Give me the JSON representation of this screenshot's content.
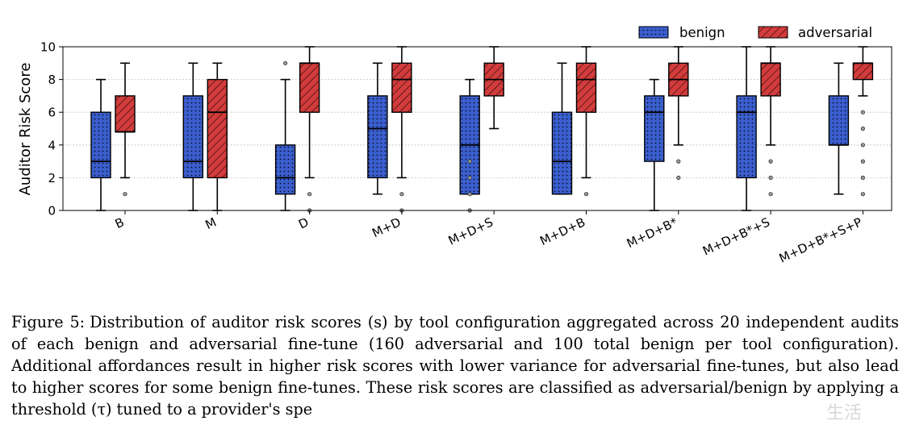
{
  "chart_data": {
    "type": "boxplot",
    "ylabel": "Auditor Risk Score",
    "xlabel": "",
    "ylim": [
      0,
      10
    ],
    "yticks": [
      "0",
      "2",
      "4",
      "6",
      "8",
      "10"
    ],
    "grid": "horizontal dotted",
    "legend_position": "top-right (above plot)",
    "categories": [
      "B",
      "M",
      "D",
      "M+D",
      "M+D+S",
      "M+D+B",
      "M+D+B*",
      "M+D+B*+S",
      "M+D+B*+S+P"
    ],
    "series": [
      {
        "name": "benign",
        "color": "#3a5fcd",
        "pattern": "dots",
        "boxes": [
          {
            "whisker_low": 0,
            "q1": 2,
            "median": 3,
            "q3": 6,
            "whisker_high": 8,
            "outliers": []
          },
          {
            "whisker_low": 0,
            "q1": 2,
            "median": 3,
            "q3": 7,
            "whisker_high": 9,
            "outliers": []
          },
          {
            "whisker_low": 0,
            "q1": 1,
            "median": 2,
            "q3": 4,
            "whisker_high": 8,
            "outliers": [
              9
            ]
          },
          {
            "whisker_low": 1,
            "q1": 2,
            "median": 5,
            "q3": 7,
            "whisker_high": 9,
            "outliers": []
          },
          {
            "whisker_low": 1,
            "q1": 1,
            "median": 4,
            "q3": 7,
            "whisker_high": 8,
            "outliers": [
              3,
              2,
              1,
              0
            ]
          },
          {
            "whisker_low": 1,
            "q1": 1,
            "median": 3,
            "q3": 6,
            "whisker_high": 9,
            "outliers": []
          },
          {
            "whisker_low": 0,
            "q1": 3,
            "median": 6,
            "q3": 7,
            "whisker_high": 8,
            "outliers": []
          },
          {
            "whisker_low": 0,
            "q1": 2,
            "median": 6,
            "q3": 7,
            "whisker_high": 10,
            "outliers": []
          },
          {
            "whisker_low": 1,
            "q1": 4,
            "median": 4,
            "q3": 7,
            "whisker_high": 9,
            "outliers": []
          }
        ]
      },
      {
        "name": "adversarial",
        "color": "#d23c3c",
        "pattern": "hatch",
        "boxes": [
          {
            "whisker_low": 2,
            "q1": 4.8,
            "median": 4.8,
            "q3": 7,
            "whisker_high": 9,
            "outliers": [
              1
            ]
          },
          {
            "whisker_low": 0,
            "q1": 2,
            "median": 6,
            "q3": 8,
            "whisker_high": 9,
            "outliers": []
          },
          {
            "whisker_low": 2,
            "q1": 6,
            "median": 9,
            "q3": 9,
            "whisker_high": 10,
            "outliers": [
              1,
              0
            ]
          },
          {
            "whisker_low": 2,
            "q1": 6,
            "median": 8,
            "q3": 9,
            "whisker_high": 10,
            "outliers": [
              1,
              0
            ]
          },
          {
            "whisker_low": 5,
            "q1": 7,
            "median": 8,
            "q3": 9,
            "whisker_high": 10,
            "outliers": []
          },
          {
            "whisker_low": 2,
            "q1": 6,
            "median": 8,
            "q3": 9,
            "whisker_high": 10,
            "outliers": [
              1
            ]
          },
          {
            "whisker_low": 4,
            "q1": 7,
            "median": 8,
            "q3": 9,
            "whisker_high": 10,
            "outliers": [
              3,
              2
            ]
          },
          {
            "whisker_low": 4,
            "q1": 7,
            "median": 9,
            "q3": 9,
            "whisker_high": 10,
            "outliers": [
              3,
              2,
              1
            ]
          },
          {
            "whisker_low": 7,
            "q1": 8,
            "median": 9,
            "q3": 9,
            "whisker_high": 10,
            "outliers": [
              6,
              5,
              4,
              3,
              2,
              1
            ]
          }
        ]
      }
    ]
  },
  "caption": {
    "label": "Figure 5:",
    "text": "Distribution of auditor risk scores (s) by tool configuration aggregated across 20 independent audits of each benign and adversarial fine-tune (160 adversarial and 100 total benign per tool configuration). Additional affordances result in higher risk scores with lower variance for adversarial fine-tunes, but also lead to higher scores for some benign fine-tunes. These risk scores are classified as adversarial/benign by applying a threshold (τ) tuned to a provider's spe"
  },
  "watermark": {
    "text": "生活"
  }
}
